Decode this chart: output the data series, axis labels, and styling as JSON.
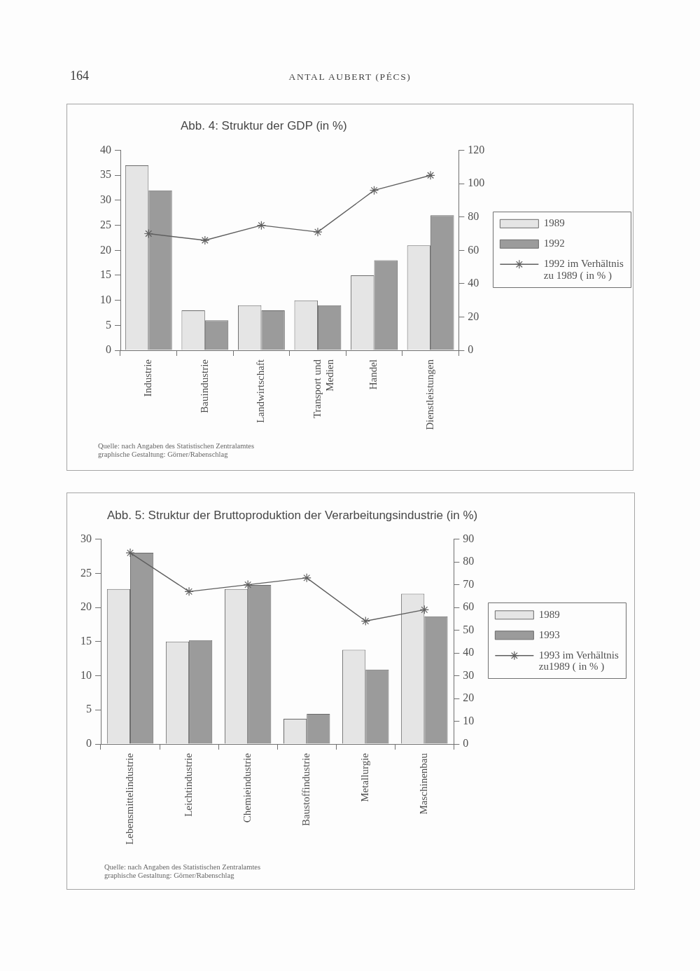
{
  "chart_data": [
    {
      "type": "other",
      "title": "ANTAL AUBERT (PÉCS)",
      "annotations": [
        "164"
      ]
    },
    {
      "type": "bar",
      "title": "Abb. 4: Struktur der GDP (in %)",
      "categories": [
        "Industrie",
        "Bauindustrie",
        "Landwirtschaft",
        "Transport und Medien",
        "Handel",
        "Dienstleistungen"
      ],
      "series": [
        {
          "name": "1989",
          "color": "#e5e5e5",
          "values": [
            37,
            8,
            9,
            10,
            15,
            21
          ]
        },
        {
          "name": "1992",
          "color": "#9b9b9b",
          "values": [
            32,
            6,
            8,
            9,
            18,
            27
          ]
        },
        {
          "name": "1992 im Verhältnis zu 1989 ( in % )",
          "type": "line",
          "axis": "y2",
          "color": "#5f5f5f",
          "values": [
            70,
            66,
            75,
            71,
            96,
            105
          ]
        }
      ],
      "ylim": [
        0,
        40
      ],
      "yticks": [
        0,
        5,
        10,
        15,
        20,
        25,
        30,
        35,
        40
      ],
      "y2lim": [
        0,
        120
      ],
      "y2ticks": [
        0,
        20,
        40,
        60,
        80,
        100,
        120
      ],
      "legend": "right",
      "marker": "cross",
      "annotations": [
        "Quelle: nach Angaben des Statistischen Zentralamtes",
        "graphische Gestaltung: Görner/Rabenschlag"
      ]
    },
    {
      "type": "bar",
      "title": "Abb. 5: Struktur der Bruttoproduktion der Verarbeitungsindustrie (in %)",
      "categories": [
        "Lebensmittelindustrie",
        "Leichtindustrie",
        "Chemieindustrie",
        "Baustoffindustrie",
        "Metallurgie",
        "Maschinenbau"
      ],
      "series": [
        {
          "name": "1989",
          "color": "#e5e5e5",
          "values": [
            22.7,
            15,
            22.7,
            3.7,
            13.8,
            22
          ]
        },
        {
          "name": "1993",
          "color": "#9b9b9b",
          "values": [
            28,
            15.2,
            23.3,
            4.4,
            10.9,
            18.7
          ]
        },
        {
          "name": "1993 im Verhältnis zu1989 ( in % )",
          "type": "line",
          "axis": "y2",
          "color": "#5f5f5f",
          "values": [
            84,
            67,
            70,
            73,
            54,
            59
          ]
        }
      ],
      "ylim": [
        0,
        30
      ],
      "yticks": [
        0,
        5,
        10,
        15,
        20,
        25,
        30
      ],
      "y2lim": [
        0,
        90
      ],
      "y2ticks": [
        0,
        10,
        20,
        30,
        40,
        50,
        60,
        70,
        80,
        90
      ],
      "legend": "right",
      "marker": "cross",
      "annotations": [
        "Quelle: nach Angaben des Statistischen Zentralamtes",
        "graphische Gestaltung: Görner/Rabenschlag"
      ]
    }
  ]
}
